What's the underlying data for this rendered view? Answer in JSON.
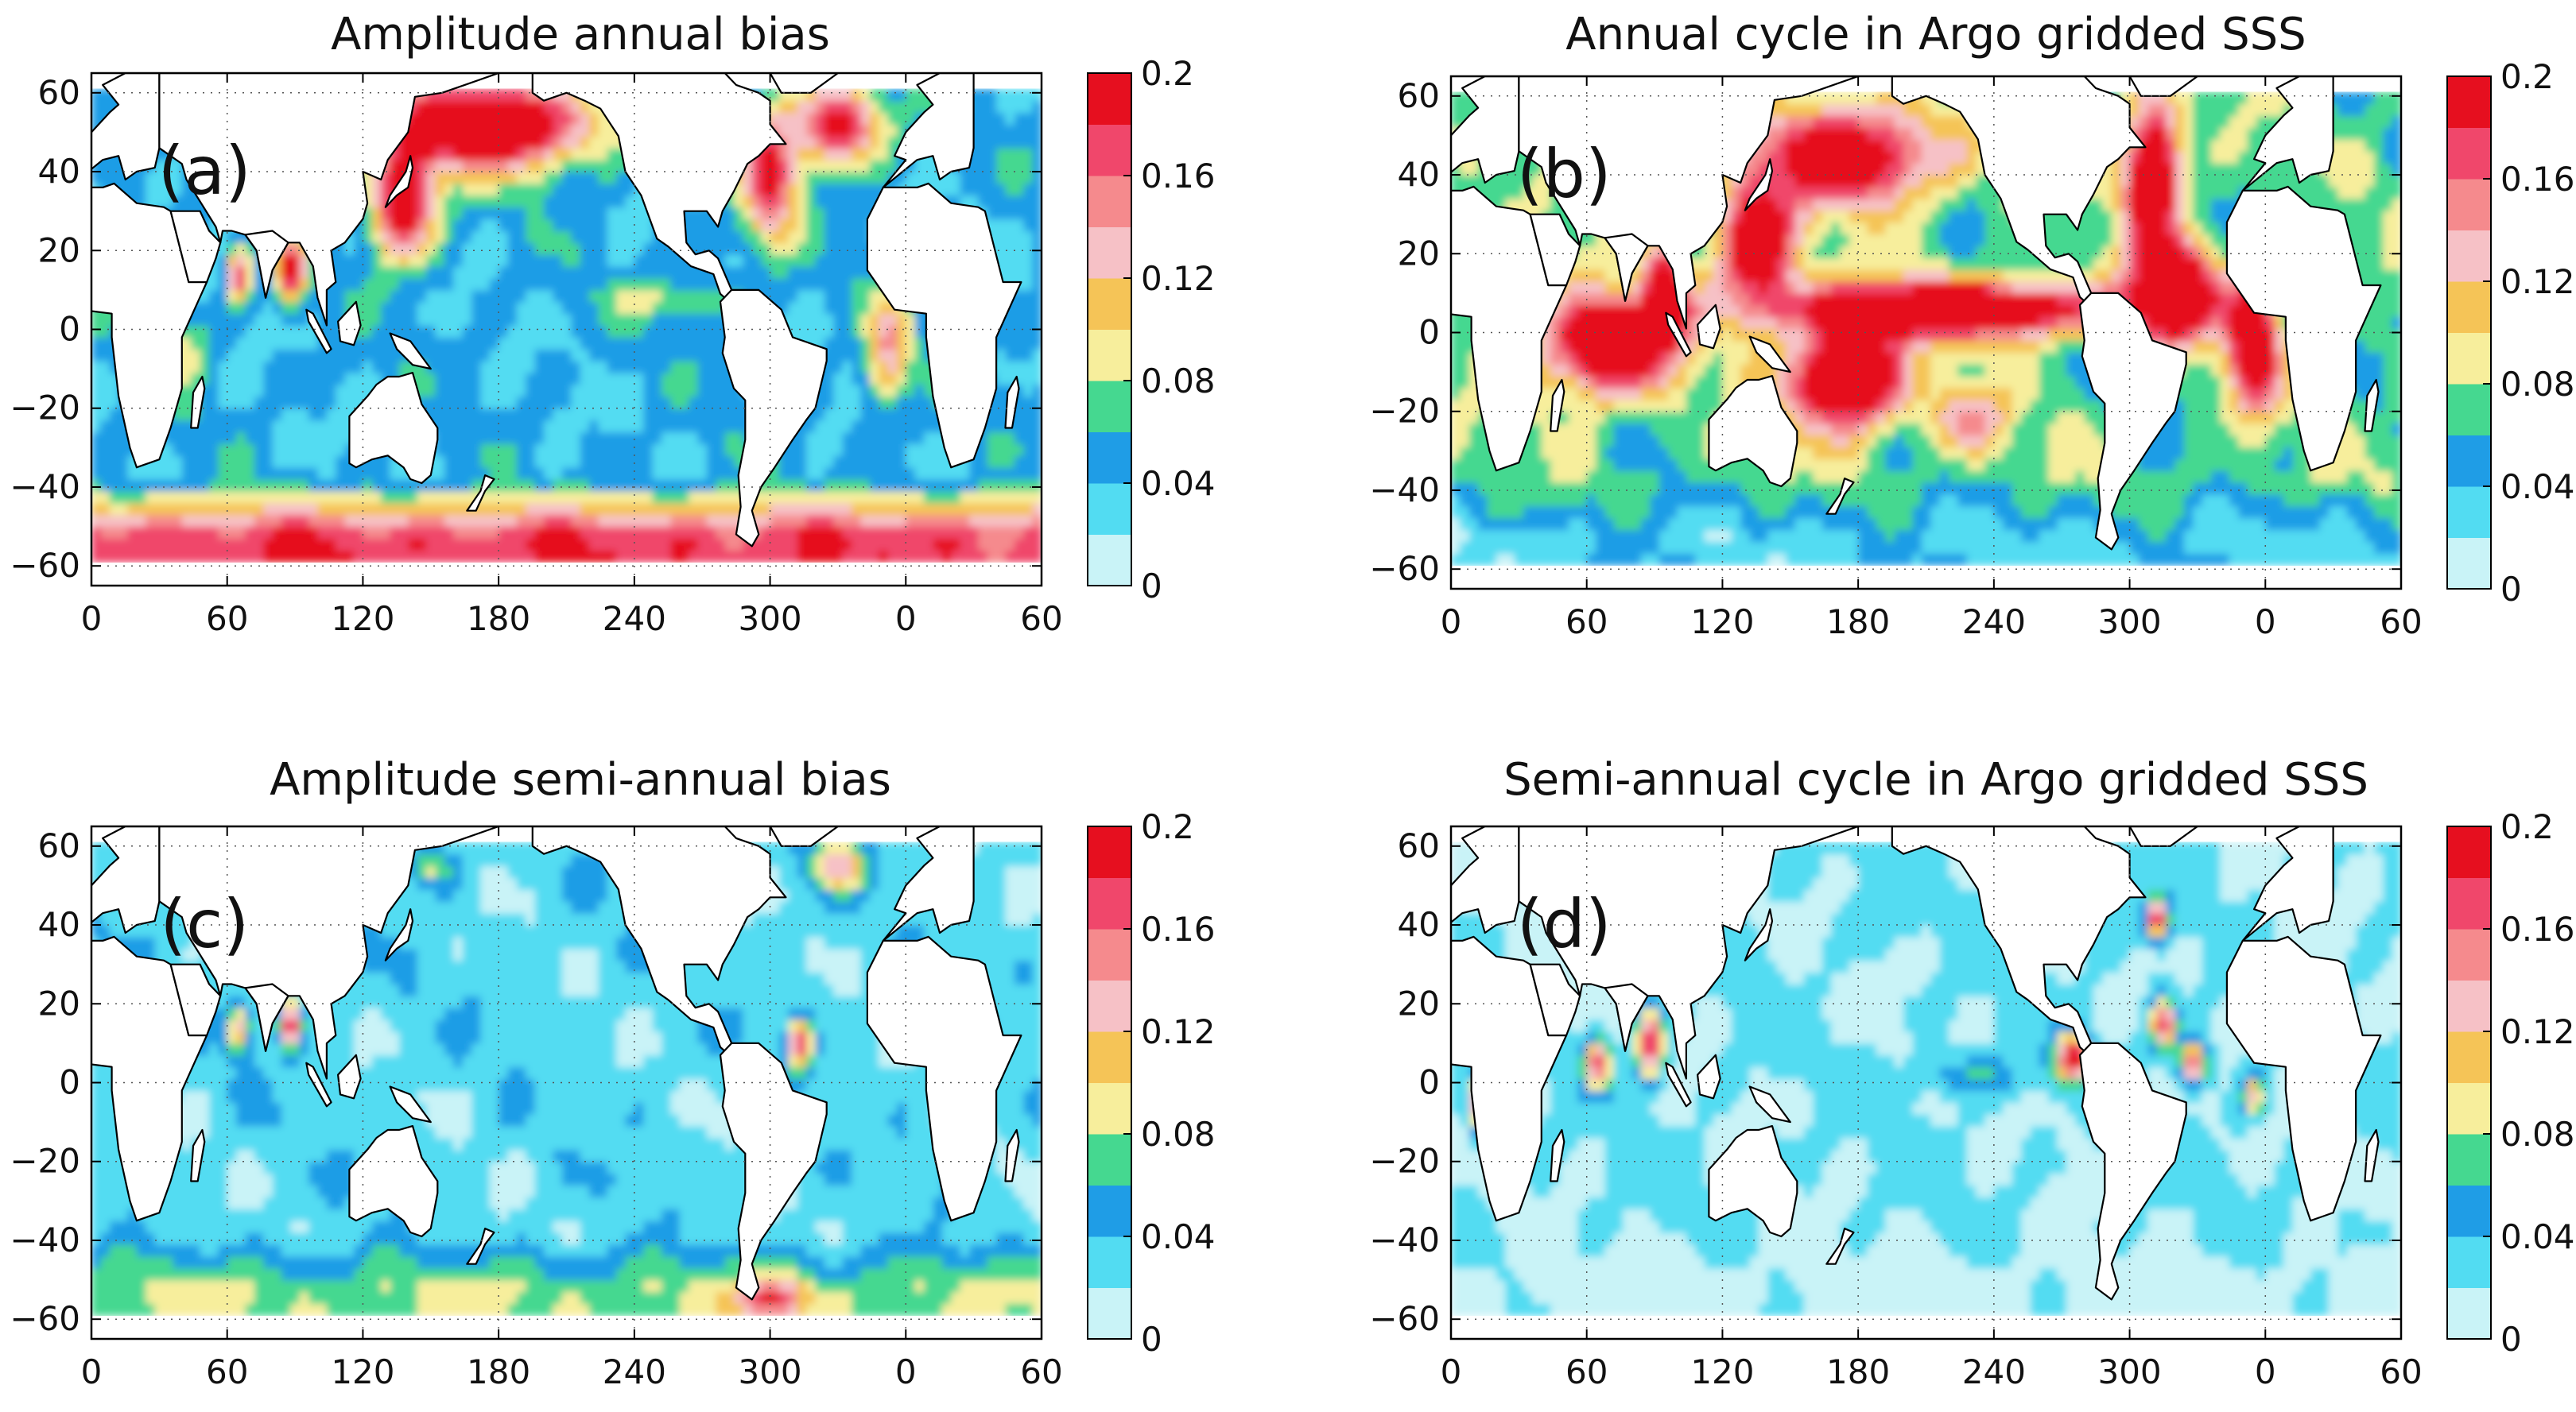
{
  "figure": {
    "description_panels": [
      "a",
      "b",
      "c",
      "d"
    ]
  },
  "colorscale": {
    "levels": [
      0,
      0.02,
      0.04,
      0.06,
      0.08,
      0.1,
      0.12,
      0.14,
      0.16,
      0.18,
      0.2
    ],
    "colors": [
      "#c9f3f7",
      "#52dcf2",
      "#1f9de6",
      "#45d890",
      "#f7ee9c",
      "#f5c457",
      "#f6c1c6",
      "#f58a8d",
      "#f0476b",
      "#e60f1f"
    ],
    "tick_labels": [
      "0",
      "0.04",
      "0.08",
      "0.12",
      "0.16",
      "0.2"
    ],
    "tick_values": [
      0,
      0.04,
      0.08,
      0.12,
      0.16,
      0.2
    ],
    "land_color": "#ffffff",
    "coast_color": "#000000"
  },
  "chart_data": [
    {
      "type": "heatmap",
      "panel_letter": "(a)",
      "title": "Amplitude annual bias",
      "x_ticks": [
        "0",
        "60",
        "120",
        "180",
        "240",
        "300",
        "0",
        "60"
      ],
      "y_ticks": [
        "60",
        "40",
        "20",
        "0",
        "−20",
        "−40",
        "−60"
      ],
      "xlim": [
        0,
        420
      ],
      "ylim": [
        -65,
        65
      ],
      "colorbar_labels": [
        "0.2",
        "0.16",
        "0.12",
        "0.08",
        "0.04",
        "0"
      ],
      "zlim": [
        0,
        0.2
      ],
      "field": {
        "base": 0.045,
        "southern_ocean": 0.13,
        "noise": 0.025,
        "features": [
          {
            "lon": 175,
            "lat": 52,
            "rlon": 45,
            "rlat": 11,
            "amp": 0.22
          },
          {
            "lon": 138,
            "lat": 32,
            "rlon": 14,
            "rlat": 14,
            "amp": 0.18
          },
          {
            "lon": 330,
            "lat": 52,
            "rlon": 20,
            "rlat": 10,
            "amp": 0.16
          },
          {
            "lon": 300,
            "lat": 38,
            "rlon": 12,
            "rlat": 16,
            "amp": 0.14
          },
          {
            "lon": 88,
            "lat": 15,
            "rlon": 6,
            "rlat": 7,
            "amp": 0.18
          },
          {
            "lon": 65,
            "lat": 14,
            "rlon": 5,
            "rlat": 6,
            "amp": 0.14
          },
          {
            "lon": 352,
            "lat": -5,
            "rlon": 10,
            "rlat": 14,
            "amp": 0.09
          },
          {
            "lon": 40,
            "lat": -5,
            "rlon": 12,
            "rlat": 10,
            "amp": 0.05
          },
          {
            "lon": 260,
            "lat": 8,
            "rlon": 30,
            "rlat": 5,
            "amp": 0.04
          }
        ]
      }
    },
    {
      "type": "heatmap",
      "panel_letter": "(b)",
      "title": "Annual cycle in Argo gridded SSS",
      "x_ticks": [
        "0",
        "60",
        "120",
        "180",
        "240",
        "300",
        "0",
        "60"
      ],
      "y_ticks": [
        "60",
        "40",
        "20",
        "0",
        "−20",
        "−40",
        "−60"
      ],
      "xlim": [
        0,
        420
      ],
      "ylim": [
        -65,
        65
      ],
      "colorbar_labels": [
        "0.2",
        "0.16",
        "0.12",
        "0.08",
        "0.04",
        "0"
      ],
      "zlim": [
        0,
        0.2
      ],
      "field": {
        "base": 0.07,
        "southern_ocean": -0.035,
        "noise": 0.03,
        "features": [
          {
            "lon": 220,
            "lat": 6,
            "rlon": 75,
            "rlat": 7,
            "amp": 0.2
          },
          {
            "lon": 175,
            "lat": -12,
            "rlon": 25,
            "rlat": 12,
            "amp": 0.2
          },
          {
            "lon": 135,
            "lat": 22,
            "rlon": 16,
            "rlat": 14,
            "amp": 0.18
          },
          {
            "lon": 175,
            "lat": 45,
            "rlon": 40,
            "rlat": 12,
            "amp": 0.17
          },
          {
            "lon": 70,
            "lat": -3,
            "rlon": 28,
            "rlat": 12,
            "amp": 0.2
          },
          {
            "lon": 95,
            "lat": 10,
            "rlon": 8,
            "rlat": 10,
            "amp": 0.2
          },
          {
            "lon": 310,
            "lat": 40,
            "rlon": 12,
            "rlat": 18,
            "amp": 0.2
          },
          {
            "lon": 320,
            "lat": 10,
            "rlon": 18,
            "rlat": 12,
            "amp": 0.2
          },
          {
            "lon": 355,
            "lat": -2,
            "rlon": 10,
            "rlat": 16,
            "amp": 0.2
          },
          {
            "lon": 230,
            "lat": -22,
            "rlon": 15,
            "rlat": 8,
            "amp": 0.08
          }
        ]
      }
    },
    {
      "type": "heatmap",
      "panel_letter": "(c)",
      "title": "Amplitude semi-annual bias",
      "x_ticks": [
        "0",
        "60",
        "120",
        "180",
        "240",
        "300",
        "0",
        "60"
      ],
      "y_ticks": [
        "60",
        "40",
        "20",
        "0",
        "−20",
        "−40",
        "−60"
      ],
      "xlim": [
        0,
        420
      ],
      "ylim": [
        -65,
        65
      ],
      "colorbar_labels": [
        "0.2",
        "0.16",
        "0.12",
        "0.08",
        "0.04",
        "0"
      ],
      "zlim": [
        0,
        0.2
      ],
      "field": {
        "base": 0.03,
        "southern_ocean": 0.05,
        "noise": 0.022,
        "features": [
          {
            "lon": 88,
            "lat": 15,
            "rlon": 5,
            "rlat": 6,
            "amp": 0.16
          },
          {
            "lon": 65,
            "lat": 14,
            "rlon": 5,
            "rlat": 6,
            "amp": 0.1
          },
          {
            "lon": 313,
            "lat": 10,
            "rlon": 5,
            "rlat": 6,
            "amp": 0.14
          },
          {
            "lon": 330,
            "lat": 55,
            "rlon": 12,
            "rlat": 6,
            "amp": 0.1
          },
          {
            "lon": 300,
            "lat": -55,
            "rlon": 15,
            "rlat": 5,
            "amp": 0.1
          },
          {
            "lon": 150,
            "lat": 55,
            "rlon": 10,
            "rlat": 5,
            "amp": 0.06
          }
        ]
      }
    },
    {
      "type": "heatmap",
      "panel_letter": "(d)",
      "title": "Semi-annual cycle in Argo gridded SSS",
      "x_ticks": [
        "0",
        "60",
        "120",
        "180",
        "240",
        "300",
        "0",
        "60"
      ],
      "y_ticks": [
        "60",
        "40",
        "20",
        "0",
        "−20",
        "−40",
        "−60"
      ],
      "xlim": [
        0,
        420
      ],
      "ylim": [
        -65,
        65
      ],
      "colorbar_labels": [
        "0.2",
        "0.16",
        "0.12",
        "0.08",
        "0.04",
        "0"
      ],
      "zlim": [
        0,
        0.2
      ],
      "field": {
        "base": 0.022,
        "southern_ocean": -0.012,
        "noise": 0.018,
        "features": [
          {
            "lon": 88,
            "lat": 10,
            "rlon": 6,
            "rlat": 8,
            "amp": 0.18
          },
          {
            "lon": 65,
            "lat": 5,
            "rlon": 6,
            "rlat": 6,
            "amp": 0.15
          },
          {
            "lon": 275,
            "lat": 6,
            "rlon": 8,
            "rlat": 6,
            "amp": 0.18
          },
          {
            "lon": 312,
            "lat": 42,
            "rlon": 5,
            "rlat": 5,
            "amp": 0.17
          },
          {
            "lon": 315,
            "lat": 15,
            "rlon": 6,
            "rlat": 6,
            "amp": 0.16
          },
          {
            "lon": 328,
            "lat": 5,
            "rlon": 6,
            "rlat": 5,
            "amp": 0.16
          },
          {
            "lon": 12,
            "lat": -5,
            "rlon": 4,
            "rlat": 7,
            "amp": 0.14
          },
          {
            "lon": 355,
            "lat": -3,
            "rlon": 5,
            "rlat": 5,
            "amp": 0.1
          },
          {
            "lon": 230,
            "lat": 2,
            "rlon": 25,
            "rlat": 5,
            "amp": 0.04
          }
        ]
      }
    }
  ]
}
